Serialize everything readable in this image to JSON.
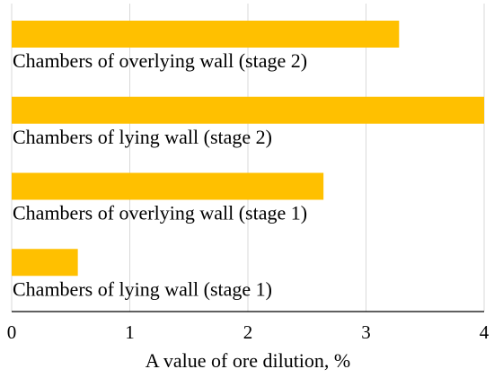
{
  "chart_data": {
    "type": "bar",
    "orientation": "horizontal",
    "categories": [
      "Chambers of overlying wall (stage 2)",
      "Chambers of lying wall (stage 2)",
      "Chambers of overlying wall (stage 1)",
      "Chambers of lying wall (stage 1)"
    ],
    "values": [
      3.28,
      4.0,
      2.64,
      0.56
    ],
    "xlabel": "A value of ore dilution, %",
    "ylabel": "",
    "xlim": [
      0,
      4
    ],
    "xticks": [
      "0",
      "1",
      "2",
      "3",
      "4"
    ],
    "grid": "vertical",
    "legend": "none",
    "bar_color": "#FFC000",
    "grid_color": "#D9D9D9",
    "axis_color": "#000000"
  }
}
